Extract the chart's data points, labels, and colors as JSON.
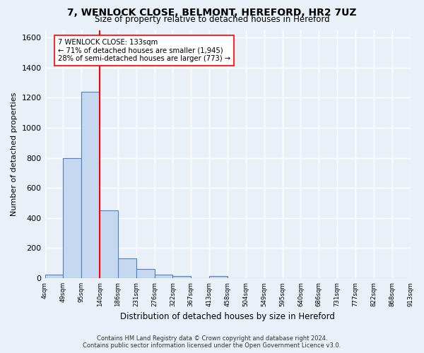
{
  "title": "7, WENLOCK CLOSE, BELMONT, HEREFORD, HR2 7UZ",
  "subtitle": "Size of property relative to detached houses in Hereford",
  "xlabel": "Distribution of detached houses by size in Hereford",
  "ylabel": "Number of detached properties",
  "bar_values": [
    25,
    800,
    1240,
    450,
    130,
    60,
    25,
    15,
    0,
    15,
    0,
    0,
    0,
    0,
    0,
    0,
    0,
    0,
    0,
    0
  ],
  "bin_labels": [
    "4sqm",
    "49sqm",
    "95sqm",
    "140sqm",
    "186sqm",
    "231sqm",
    "276sqm",
    "322sqm",
    "367sqm",
    "413sqm",
    "458sqm",
    "504sqm",
    "549sqm",
    "595sqm",
    "640sqm",
    "686sqm",
    "731sqm",
    "777sqm",
    "822sqm",
    "868sqm",
    "913sqm"
  ],
  "bar_color": "#c5d8f0",
  "bar_edge_color": "#4f7fbf",
  "red_line_x": 2.5,
  "annotation_line1": "7 WENLOCK CLOSE: 133sqm",
  "annotation_line2": "← 71% of detached houses are smaller (1,945)",
  "annotation_line3": "28% of semi-detached houses are larger (773) →",
  "ylim": [
    0,
    1650
  ],
  "yticks": [
    0,
    200,
    400,
    600,
    800,
    1000,
    1200,
    1400,
    1600
  ],
  "background_color": "#eaf0f8",
  "grid_color": "#ffffff",
  "fig_bg_color": "#eaf0f8",
  "footnote1": "Contains HM Land Registry data © Crown copyright and database right 2024.",
  "footnote2": "Contains public sector information licensed under the Open Government Licence v3.0."
}
